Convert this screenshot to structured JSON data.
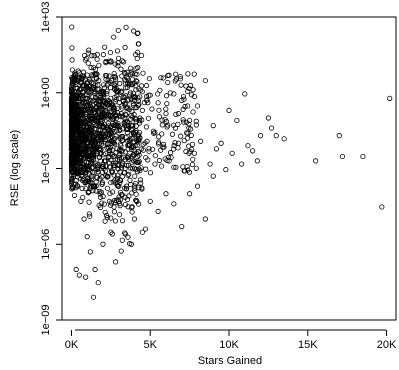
{
  "chart_data": {
    "type": "scatter",
    "title": "",
    "xlabel": "Stars Gained",
    "ylabel": "RSE (log scale)",
    "x_scale": "linear",
    "y_scale": "log",
    "xlim": [
      -600,
      20600
    ],
    "ylim": [
      1e-09,
      1000
    ],
    "x_ticks": [
      {
        "value": 0,
        "label": "0K"
      },
      {
        "value": 5000,
        "label": "5K"
      },
      {
        "value": 10000,
        "label": "10K"
      },
      {
        "value": 15000,
        "label": "15K"
      },
      {
        "value": 20000,
        "label": "20K"
      }
    ],
    "y_ticks": [
      {
        "value": 1e-09,
        "label": "1e−09"
      },
      {
        "value": 1e-06,
        "label": "1e−06"
      },
      {
        "value": 0.001,
        "label": "1e−03"
      },
      {
        "value": 1,
        "label": "1e+00"
      },
      {
        "value": 1000,
        "label": "1e+03"
      }
    ],
    "grid": false,
    "marker": "open-circle",
    "series": [
      {
        "points": [
          [
            20,
            400
          ],
          [
            30,
            60
          ],
          [
            40,
            20
          ],
          [
            60,
            8
          ],
          [
            80,
            3
          ],
          [
            100,
            2
          ],
          [
            50,
            1.2
          ],
          [
            150,
            0.9
          ],
          [
            200,
            0.6
          ],
          [
            300,
            1.5
          ],
          [
            400,
            0.8
          ],
          [
            600,
            2.5
          ],
          [
            800,
            0.4
          ],
          [
            1000,
            5
          ],
          [
            1200,
            0.3
          ],
          [
            1500,
            2
          ],
          [
            1700,
            0.5
          ],
          [
            2000,
            1
          ],
          [
            2200,
            0.2
          ],
          [
            2500,
            0.6
          ],
          [
            2700,
            0.1
          ],
          [
            3000,
            1.2
          ],
          [
            3200,
            0.3
          ],
          [
            3500,
            0.05
          ],
          [
            4000,
            0.5
          ],
          [
            4500,
            0.2
          ],
          [
            5000,
            0.8
          ],
          [
            5200,
            0.03
          ],
          [
            5500,
            0.4
          ],
          [
            6000,
            0.15
          ],
          [
            6500,
            0.9
          ],
          [
            7000,
            0.5
          ],
          [
            7500,
            0.08
          ],
          [
            8000,
            0.3
          ],
          [
            8500,
            3
          ],
          [
            9000,
            0.05
          ],
          [
            9500,
            0.01
          ],
          [
            10000,
            0.2
          ],
          [
            10500,
            0.08
          ],
          [
            11000,
            0.9
          ],
          [
            11500,
            0.005
          ],
          [
            12000,
            0.02
          ],
          [
            12500,
            0.1
          ],
          [
            12700,
            0.04
          ],
          [
            13000,
            0.02
          ],
          [
            13500,
            0.015
          ],
          [
            15500,
            0.002
          ],
          [
            17000,
            0.02
          ],
          [
            17200,
            0.003
          ],
          [
            18500,
            0.003
          ],
          [
            19700,
            3e-05
          ],
          [
            20200,
            0.6
          ],
          [
            200,
            0.001
          ],
          [
            400,
            0.0002
          ],
          [
            600,
            5e-05
          ],
          [
            800,
            1e-05
          ],
          [
            1000,
            2e-06
          ],
          [
            1200,
            5e-07
          ],
          [
            1500,
            1e-07
          ],
          [
            1700,
            3e-08
          ],
          [
            300,
            1e-07
          ],
          [
            500,
            6e-08
          ],
          [
            900,
            5e-08
          ],
          [
            1400,
            8e-09
          ],
          [
            2000,
            1e-06
          ],
          [
            2500,
            3e-06
          ],
          [
            3000,
            5e-05
          ],
          [
            3500,
            0.0002
          ],
          [
            4000,
            1e-05
          ],
          [
            4500,
            3e-06
          ],
          [
            5000,
            5e-05
          ],
          [
            5500,
            2e-05
          ],
          [
            6000,
            0.0001
          ],
          [
            6500,
            4e-05
          ],
          [
            7000,
            5e-06
          ],
          [
            7500,
            0.0001
          ],
          [
            8000,
            0.0002
          ],
          [
            8500,
            1e-05
          ],
          [
            9000,
            0.0005
          ],
          [
            4700,
            4e-06
          ],
          [
            3800,
            1e-06
          ],
          [
            2800,
            2e-07
          ],
          [
            150,
            0.01
          ],
          [
            250,
            0.003
          ],
          [
            350,
            0.05
          ],
          [
            450,
            0.008
          ],
          [
            550,
            0.02
          ],
          [
            650,
            0.004
          ],
          [
            750,
            0.06
          ],
          [
            850,
            0.001
          ],
          [
            950,
            0.015
          ],
          [
            1100,
            0.003
          ],
          [
            1300,
            0.04
          ],
          [
            1600,
            0.007
          ],
          [
            1800,
            0.02
          ],
          [
            2100,
            0.002
          ],
          [
            2300,
            0.01
          ],
          [
            2600,
            0.0008
          ],
          [
            2900,
            0.006
          ],
          [
            3100,
            0.015
          ],
          [
            3400,
            0.001
          ],
          [
            3700,
            0.009
          ],
          [
            4200,
            0.003
          ],
          [
            4800,
            0.012
          ],
          [
            5300,
            0.0015
          ],
          [
            5800,
            0.007
          ],
          [
            6200,
            0.002
          ],
          [
            6800,
            0.01
          ],
          [
            7200,
            0.0008
          ],
          [
            7800,
            0.004
          ],
          [
            8200,
            0.012
          ],
          [
            8800,
            0.0015
          ],
          [
            9200,
            0.006
          ],
          [
            9800,
            0.0009
          ],
          [
            10200,
            0.004
          ],
          [
            10800,
            0.0015
          ],
          [
            11200,
            0.008
          ],
          [
            11800,
            0.002
          ]
        ]
      }
    ]
  }
}
